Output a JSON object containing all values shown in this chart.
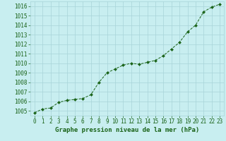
{
  "x": [
    0,
    1,
    2,
    3,
    4,
    5,
    6,
    7,
    8,
    9,
    10,
    11,
    12,
    13,
    14,
    15,
    16,
    17,
    18,
    19,
    20,
    21,
    22,
    23
  ],
  "y": [
    1004.8,
    1005.2,
    1005.3,
    1005.9,
    1006.1,
    1006.2,
    1006.3,
    1006.7,
    1008.0,
    1009.0,
    1009.4,
    1009.8,
    1010.0,
    1009.9,
    1010.1,
    1010.3,
    1010.8,
    1011.5,
    1012.2,
    1013.3,
    1014.0,
    1015.4,
    1015.9,
    1016.2
  ],
  "line_color": "#1a6318",
  "marker_color": "#1a6318",
  "bg_color": "#c8eef0",
  "grid_color": "#a8d4d8",
  "xlabel": "Graphe pression niveau de la mer (hPa)",
  "xlim": [
    -0.5,
    23.5
  ],
  "ylim": [
    1004.5,
    1016.5
  ],
  "yticks": [
    1005,
    1006,
    1007,
    1008,
    1009,
    1010,
    1011,
    1012,
    1013,
    1014,
    1015,
    1016
  ],
  "xticks": [
    0,
    1,
    2,
    3,
    4,
    5,
    6,
    7,
    8,
    9,
    10,
    11,
    12,
    13,
    14,
    15,
    16,
    17,
    18,
    19,
    20,
    21,
    22,
    23
  ],
  "tick_color": "#1a6318",
  "label_color": "#1a6318",
  "label_fontsize": 6.5,
  "tick_fontsize": 5.5
}
